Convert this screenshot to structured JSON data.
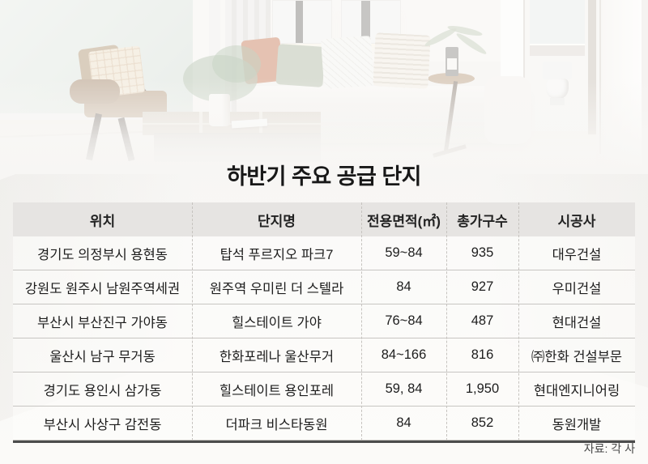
{
  "chart_data": {
    "type": "table",
    "title": "하반기 주요 공급 단지",
    "columns": [
      "위치",
      "단지명",
      "전용면적(㎡)",
      "총가구수",
      "시공사"
    ],
    "rows": [
      [
        "경기도 의정부시 용현동",
        "탑석 푸르지오 파크7",
        "59~84",
        "935",
        "대우건설"
      ],
      [
        "강원도 원주시 남원주역세권",
        "원주역 우미린 더 스텔라",
        "84",
        "927",
        "우미건설"
      ],
      [
        "부산시 부산진구 가야동",
        "힐스테이트 가야",
        "76~84",
        "487",
        "현대건설"
      ],
      [
        "울산시 남구 무거동",
        "한화포레나 울산무거",
        "84~166",
        "816",
        "㈜한화 건설부문"
      ],
      [
        "경기도 용인시 삼가동",
        "힐스테이트 용인포레",
        "59, 84",
        "1,950",
        "현대엔지니어링"
      ],
      [
        "부산시 사상구 감전동",
        "더파크 비스타동원",
        "84",
        "852",
        "동원개발"
      ]
    ],
    "source": "자료: 각 사"
  },
  "colors": {
    "header_bg": "#e6e4e2",
    "row_border": "#c7c5c2",
    "table_bottom_border": "#4c4c4c",
    "text": "#1d1d1d",
    "source_text": "#474747"
  }
}
